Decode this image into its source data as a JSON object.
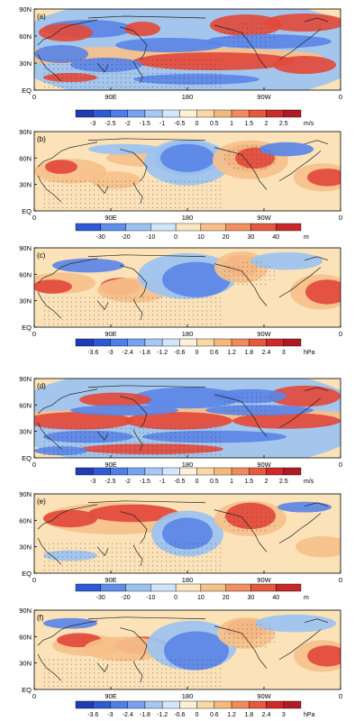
{
  "panels": [
    {
      "label": "(a)",
      "colorbar": {
        "ticks": [
          "-3",
          "-2.5",
          "-2",
          "-1.5",
          "-1",
          "-0.5",
          "0",
          "0.5",
          "1",
          "1.5",
          "2",
          "2.5"
        ],
        "unit": "m/s"
      }
    },
    {
      "label": "(b)",
      "colorbar": {
        "ticks": [
          "-30",
          "-20",
          "-10",
          "0",
          "10",
          "20",
          "30",
          "40"
        ],
        "unit": "m"
      }
    },
    {
      "label": "(c)",
      "colorbar": {
        "ticks": [
          "-3.6",
          "-3",
          "-2.4",
          "-1.8",
          "-1.2",
          "-0.6",
          "0",
          "0.6",
          "1.2",
          "1.8",
          "2.4",
          "3"
        ],
        "unit": "hPa"
      }
    },
    {
      "label": "(d)",
      "colorbar": {
        "ticks": [
          "-3",
          "-2.5",
          "-2",
          "-1.5",
          "-1",
          "-0.5",
          "0",
          "0.5",
          "1",
          "1.5",
          "2",
          "2.5"
        ],
        "unit": "m/s"
      }
    },
    {
      "label": "(e)",
      "colorbar": {
        "ticks": [
          "-30",
          "-20",
          "-10",
          "0",
          "10",
          "20",
          "30",
          "40"
        ],
        "unit": "m"
      }
    },
    {
      "label": "(f)",
      "colorbar": {
        "ticks": [
          "-3.6",
          "-3",
          "-2.4",
          "-1.8",
          "-1.2",
          "-0.6",
          "0",
          "0.6",
          "1.2",
          "1.8",
          "2.4",
          "3"
        ],
        "unit": "hPa"
      }
    }
  ],
  "axes": {
    "y_ticks": [
      "90N",
      "60N",
      "30N",
      "EQ"
    ],
    "x_ticks": [
      "0",
      "90E",
      "180",
      "90W",
      "0"
    ]
  },
  "colors": {
    "deep_blue": "#2b50c8",
    "blue": "#5b86e6",
    "light_blue": "#9cc3f0",
    "pale_blue": "#cfe6f8",
    "white": "#ffffff",
    "pale_orange": "#fbe2b8",
    "light_orange": "#f6c08a",
    "orange": "#f0905e",
    "red": "#e24a3c",
    "deep_red": "#c81e28"
  }
}
